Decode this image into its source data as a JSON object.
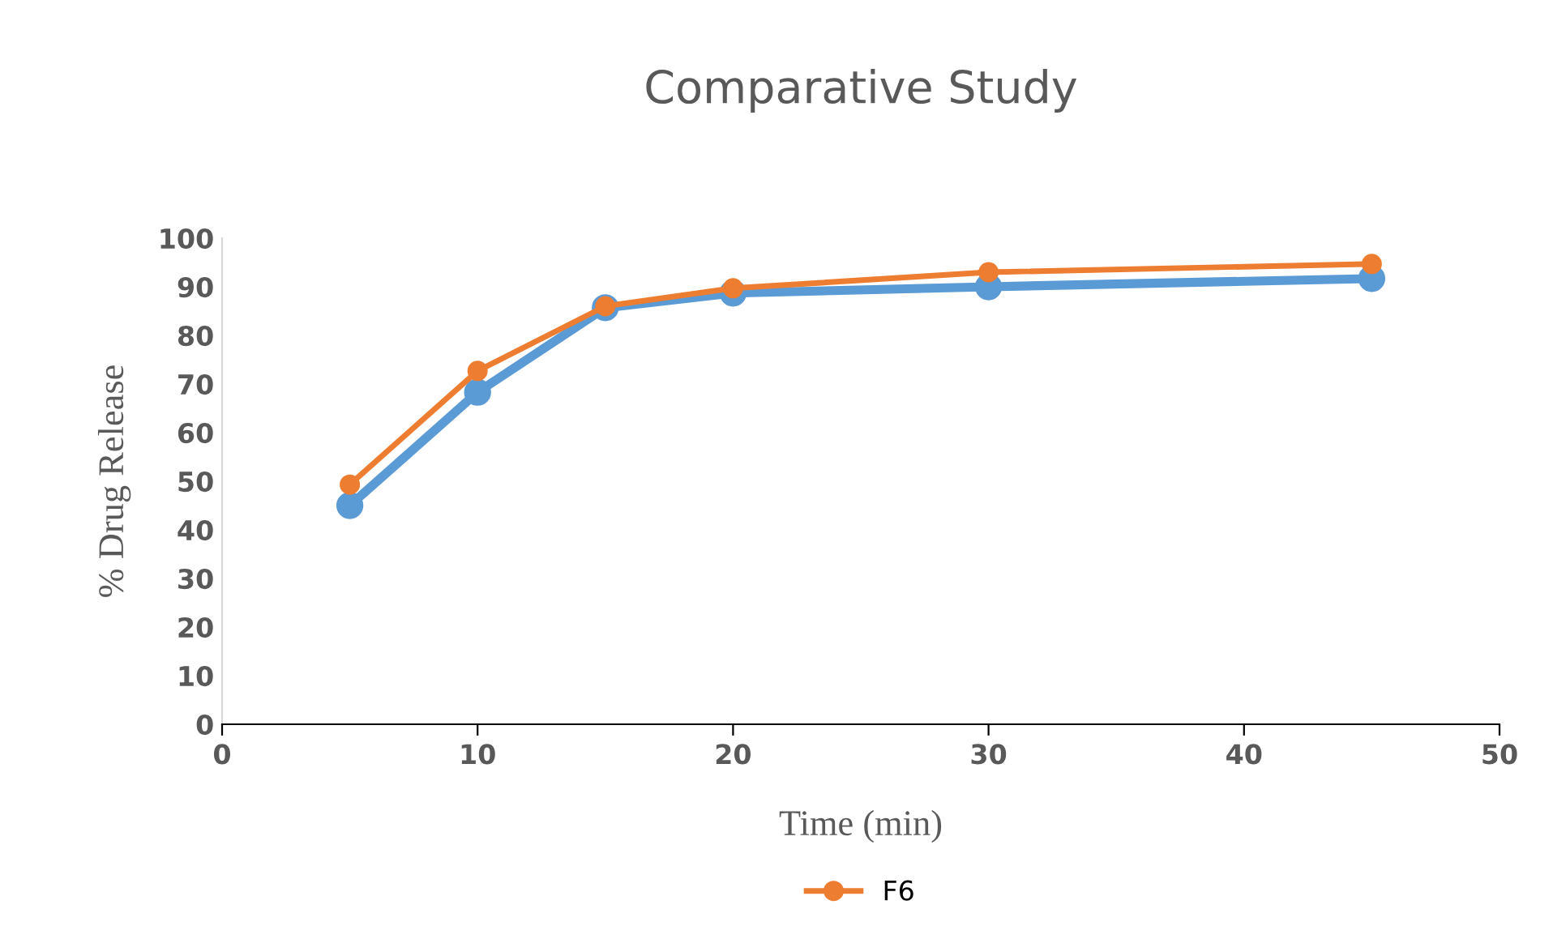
{
  "chart_data": {
    "type": "line",
    "title": "Comparative Study",
    "xlabel": "Time (min)",
    "ylabel": "% Drug Release",
    "x": [
      5,
      10,
      15,
      20,
      30,
      45
    ],
    "series": [
      {
        "color": "#5b9bd5",
        "values": [
          45,
          68.3,
          85.7,
          88.7,
          90,
          91.7
        ]
      },
      {
        "name": "F6",
        "color": "#ed7d31",
        "values": [
          49.3,
          72.7,
          86,
          89.7,
          93,
          94.7
        ]
      }
    ],
    "xlim": [
      0,
      50
    ],
    "xticks": [
      0,
      10,
      20,
      30,
      40,
      50
    ],
    "ylim": [
      0,
      100
    ],
    "yticks": [
      0,
      10,
      20,
      30,
      40,
      50,
      60,
      70,
      80,
      90,
      100
    ],
    "marker": "circle",
    "line_style": "solid",
    "legend": "bottom"
  }
}
